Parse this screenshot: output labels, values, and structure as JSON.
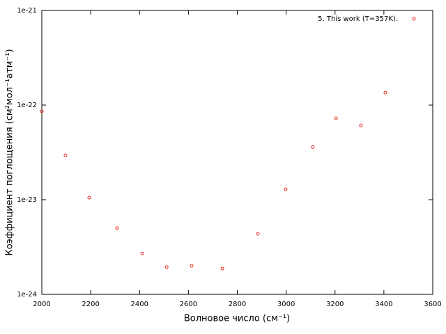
{
  "chart_data": {
    "type": "scatter",
    "xlabel": "Волновое число (см⁻¹)",
    "ylabel": "Коэффициент поглощения (см²мол⁻¹атм⁻¹)",
    "xlim": [
      2000,
      3600
    ],
    "xticks": [
      2000,
      2200,
      2400,
      2600,
      2800,
      3000,
      3200,
      3400,
      3600
    ],
    "ylim": [
      1e-24,
      1e-21
    ],
    "yticks": [
      1e-24,
      1e-23,
      1e-22,
      1e-21
    ],
    "yscale": "log",
    "legend": "top-right",
    "series": [
      {
        "name": "5. This work (T=357K).",
        "color": "#e8281e",
        "x": [
          2000,
          2097,
          2194,
          2308,
          2411,
          2511,
          2613,
          2739,
          2884,
          2998,
          3109,
          3204,
          3306,
          3406
        ],
        "values": [
          8.6e-23,
          2.95e-23,
          1.05e-23,
          5e-24,
          2.7e-24,
          1.94e-24,
          2e-24,
          1.87e-24,
          4.36e-24,
          1.29e-23,
          3.6e-23,
          7.25e-23,
          6.1e-23,
          1.35e-22
        ]
      }
    ]
  }
}
